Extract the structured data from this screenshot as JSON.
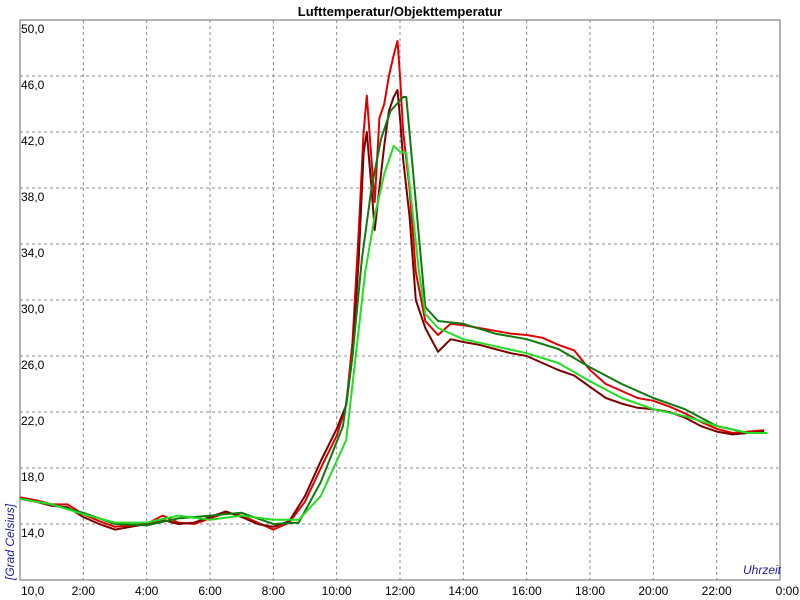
{
  "chart_data": {
    "type": "line",
    "title": "Lufttemperatur/Objekttemperatur",
    "xlabel": "Uhrzeit",
    "ylabel": "[Grad Celsius]",
    "xlim": [
      0,
      24
    ],
    "ylim": [
      10,
      50
    ],
    "grid": true,
    "x_ticks": [
      {
        "value": 0,
        "label": "10,0"
      },
      {
        "value": 2,
        "label": "2:00"
      },
      {
        "value": 4,
        "label": "4:00"
      },
      {
        "value": 6,
        "label": "6:00"
      },
      {
        "value": 8,
        "label": "8:00"
      },
      {
        "value": 10,
        "label": "10:00"
      },
      {
        "value": 12,
        "label": "12:00"
      },
      {
        "value": 14,
        "label": "14:00"
      },
      {
        "value": 16,
        "label": "16:00"
      },
      {
        "value": 18,
        "label": "18:00"
      },
      {
        "value": 20,
        "label": "20:00"
      },
      {
        "value": 22,
        "label": "22:00"
      },
      {
        "value": 24,
        "label": "0:00"
      }
    ],
    "y_ticks": [
      {
        "value": 14,
        "label": "14,0"
      },
      {
        "value": 18,
        "label": "18,0"
      },
      {
        "value": 22,
        "label": "22,0"
      },
      {
        "value": 26,
        "label": "26,0"
      },
      {
        "value": 30,
        "label": "30,0"
      },
      {
        "value": 34,
        "label": "34,0"
      },
      {
        "value": 38,
        "label": "38,0"
      },
      {
        "value": 42,
        "label": "42,0"
      },
      {
        "value": 46,
        "label": "46,0"
      },
      {
        "value": 50,
        "label": "50,0"
      }
    ],
    "series": [
      {
        "color": "#e00000",
        "points": [
          [
            0,
            15.9
          ],
          [
            0.5,
            15.7
          ],
          [
            1,
            15.4
          ],
          [
            1.5,
            15.4
          ],
          [
            2,
            14.7
          ],
          [
            2.5,
            14.2
          ],
          [
            3,
            13.8
          ],
          [
            3.5,
            13.9
          ],
          [
            4,
            14.0
          ],
          [
            4.5,
            14.6
          ],
          [
            5,
            14.1
          ],
          [
            5.5,
            14.0
          ],
          [
            6,
            14.4
          ],
          [
            6.5,
            14.8
          ],
          [
            7,
            14.6
          ],
          [
            7.5,
            14.1
          ],
          [
            8,
            13.6
          ],
          [
            8.5,
            14.1
          ],
          [
            9,
            15.6
          ],
          [
            9.5,
            18.0
          ],
          [
            10,
            20.3
          ],
          [
            10.3,
            22.5
          ],
          [
            10.5,
            27.0
          ],
          [
            10.7,
            35.0
          ],
          [
            10.85,
            42.0
          ],
          [
            10.95,
            44.6
          ],
          [
            11.1,
            40.0
          ],
          [
            11.2,
            37.0
          ],
          [
            11.35,
            43.0
          ],
          [
            11.5,
            44.0
          ],
          [
            11.65,
            46.0
          ],
          [
            11.8,
            47.5
          ],
          [
            11.92,
            48.5
          ],
          [
            12.0,
            46.0
          ],
          [
            12.1,
            42.0
          ],
          [
            12.3,
            38.0
          ],
          [
            12.5,
            32.0
          ],
          [
            12.8,
            28.5
          ],
          [
            13.2,
            27.5
          ],
          [
            13.6,
            28.3
          ],
          [
            14,
            28.2
          ],
          [
            14.5,
            28.0
          ],
          [
            15,
            27.8
          ],
          [
            15.5,
            27.6
          ],
          [
            16,
            27.5
          ],
          [
            16.5,
            27.3
          ],
          [
            17,
            26.8
          ],
          [
            17.5,
            26.4
          ],
          [
            18,
            25.0
          ],
          [
            18.5,
            24.0
          ],
          [
            19,
            23.5
          ],
          [
            19.5,
            23.0
          ],
          [
            20,
            22.8
          ],
          [
            20.5,
            22.4
          ],
          [
            21,
            21.9
          ],
          [
            21.5,
            21.3
          ],
          [
            22,
            20.8
          ],
          [
            22.5,
            20.5
          ],
          [
            23,
            20.6
          ],
          [
            23.5,
            20.7
          ]
        ]
      },
      {
        "color": "#7a0000",
        "points": [
          [
            0,
            15.8
          ],
          [
            0.5,
            15.6
          ],
          [
            1,
            15.3
          ],
          [
            1.5,
            15.2
          ],
          [
            2,
            14.5
          ],
          [
            2.5,
            14.0
          ],
          [
            3,
            13.6
          ],
          [
            3.5,
            13.8
          ],
          [
            4,
            14.0
          ],
          [
            4.5,
            14.3
          ],
          [
            5,
            14.0
          ],
          [
            5.5,
            14.1
          ],
          [
            6,
            14.5
          ],
          [
            6.5,
            14.9
          ],
          [
            7,
            14.5
          ],
          [
            7.5,
            14.0
          ],
          [
            8,
            13.8
          ],
          [
            8.5,
            14.2
          ],
          [
            9,
            16.0
          ],
          [
            9.5,
            18.5
          ],
          [
            10,
            20.8
          ],
          [
            10.3,
            22.5
          ],
          [
            10.5,
            26.0
          ],
          [
            10.7,
            33.0
          ],
          [
            10.85,
            40.5
          ],
          [
            10.95,
            42.0
          ],
          [
            11.1,
            38.0
          ],
          [
            11.2,
            35.0
          ],
          [
            11.35,
            38.0
          ],
          [
            11.5,
            41.0
          ],
          [
            11.65,
            43.5
          ],
          [
            11.8,
            44.5
          ],
          [
            11.92,
            45.0
          ],
          [
            12.0,
            43.0
          ],
          [
            12.1,
            40.0
          ],
          [
            12.3,
            36.0
          ],
          [
            12.5,
            30.0
          ],
          [
            12.8,
            28.0
          ],
          [
            13.2,
            26.3
          ],
          [
            13.6,
            27.2
          ],
          [
            14,
            27.0
          ],
          [
            14.5,
            26.8
          ],
          [
            15,
            26.5
          ],
          [
            15.5,
            26.2
          ],
          [
            16,
            26.0
          ],
          [
            16.5,
            25.5
          ],
          [
            17,
            25.0
          ],
          [
            17.5,
            24.6
          ],
          [
            18,
            23.8
          ],
          [
            18.5,
            23.0
          ],
          [
            19,
            22.6
          ],
          [
            19.5,
            22.3
          ],
          [
            20,
            22.2
          ],
          [
            20.5,
            22.0
          ],
          [
            21,
            21.6
          ],
          [
            21.5,
            21.0
          ],
          [
            22,
            20.6
          ],
          [
            22.5,
            20.4
          ],
          [
            23,
            20.5
          ],
          [
            23.5,
            20.6
          ]
        ]
      },
      {
        "color": "#0f7a0f",
        "points": [
          [
            0,
            15.8
          ],
          [
            1,
            15.4
          ],
          [
            2,
            14.8
          ],
          [
            3,
            14.0
          ],
          [
            4,
            13.9
          ],
          [
            5,
            14.4
          ],
          [
            6,
            14.6
          ],
          [
            7,
            14.8
          ],
          [
            8,
            14.0
          ],
          [
            8.8,
            14.1
          ],
          [
            9.5,
            17.0
          ],
          [
            10.2,
            21.0
          ],
          [
            10.5,
            26.0
          ],
          [
            10.8,
            33.0
          ],
          [
            11.1,
            38.0
          ],
          [
            11.4,
            41.5
          ],
          [
            11.7,
            43.5
          ],
          [
            11.9,
            44.0
          ],
          [
            12.1,
            44.5
          ],
          [
            12.2,
            44.5
          ],
          [
            12.5,
            37.0
          ],
          [
            12.8,
            29.5
          ],
          [
            13.2,
            28.5
          ],
          [
            14,
            28.3
          ],
          [
            15,
            27.6
          ],
          [
            16,
            27.2
          ],
          [
            17,
            26.5
          ],
          [
            18,
            25.2
          ],
          [
            19,
            24.0
          ],
          [
            20,
            23.0
          ],
          [
            21,
            22.2
          ],
          [
            22,
            21.0
          ],
          [
            23,
            20.5
          ],
          [
            23.6,
            20.5
          ]
        ]
      },
      {
        "color": "#22dd22",
        "points": [
          [
            0,
            15.8
          ],
          [
            1,
            15.4
          ],
          [
            2,
            14.7
          ],
          [
            3,
            14.1
          ],
          [
            4,
            14.1
          ],
          [
            5,
            14.6
          ],
          [
            6,
            14.3
          ],
          [
            7,
            14.6
          ],
          [
            8,
            14.3
          ],
          [
            8.8,
            14.3
          ],
          [
            9.5,
            16.0
          ],
          [
            10.3,
            20.0
          ],
          [
            10.6,
            26.0
          ],
          [
            10.9,
            32.0
          ],
          [
            11.2,
            36.0
          ],
          [
            11.5,
            39.0
          ],
          [
            11.8,
            41.0
          ],
          [
            12.0,
            40.6
          ],
          [
            12.2,
            40.5
          ],
          [
            12.6,
            32.0
          ],
          [
            12.8,
            29.0
          ],
          [
            13.2,
            28.0
          ],
          [
            14,
            27.2
          ],
          [
            15,
            26.7
          ],
          [
            16,
            26.2
          ],
          [
            17,
            25.5
          ],
          [
            18,
            24.2
          ],
          [
            19,
            23.0
          ],
          [
            20,
            22.2
          ],
          [
            21,
            21.7
          ],
          [
            22,
            21.0
          ],
          [
            23,
            20.5
          ],
          [
            23.6,
            20.5
          ]
        ]
      }
    ]
  }
}
